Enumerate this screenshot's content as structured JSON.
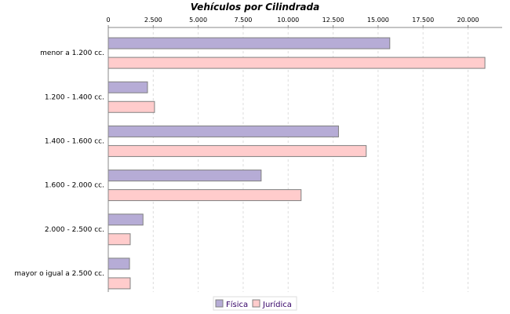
{
  "chart_data": {
    "type": "bar",
    "orientation": "horizontal",
    "title": "Vehículos por Cilindrada",
    "xlabel": "",
    "ylabel": "",
    "xlim": [
      0,
      22000
    ],
    "x_ticks": [
      "0",
      "2.500",
      "5.000",
      "7.500",
      "10.000",
      "12.500",
      "15.000",
      "17.500",
      "20.000"
    ],
    "x_tick_values": [
      0,
      2500,
      5000,
      7500,
      10000,
      12500,
      15000,
      17500,
      20000
    ],
    "axis_position": "top",
    "grid": true,
    "legend_position": "bottom",
    "categories": [
      "menor a 1.200 cc.",
      "1.200 - 1.400 cc.",
      "1.400 - 1.600 cc.",
      "1.600 - 2.000 cc.",
      "2.000 - 2.500 cc.",
      "mayor o igual a 2.500 cc."
    ],
    "series": [
      {
        "name": "Física",
        "color": "#b6acd6",
        "values": [
          15650,
          2180,
          12800,
          8500,
          1930,
          1180
        ]
      },
      {
        "name": "Jurídica",
        "color": "#ffcccc",
        "values": [
          20940,
          2570,
          14340,
          10720,
          1220,
          1220
        ]
      }
    ]
  }
}
